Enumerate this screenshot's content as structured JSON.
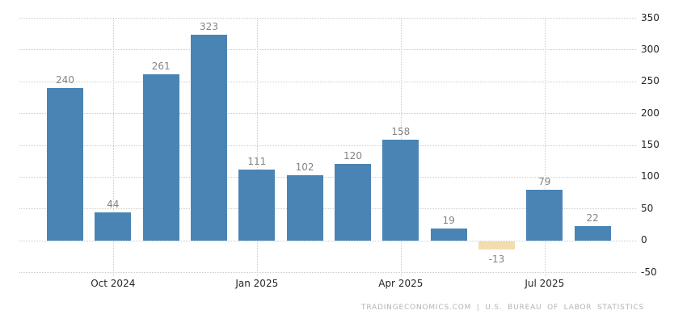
{
  "chart_data": {
    "type": "bar",
    "title": "",
    "xlabel": "",
    "ylabel": "",
    "values": [
      240,
      44,
      261,
      323,
      111,
      102,
      120,
      158,
      19,
      -13,
      79,
      22
    ],
    "value_labels": [
      "240",
      "44",
      "261",
      "323",
      "111",
      "102",
      "120",
      "158",
      "19",
      "-13",
      "79",
      "22"
    ],
    "x_ticks": [
      {
        "label": "Oct 2024",
        "bar_index": 1
      },
      {
        "label": "Jan 2025",
        "bar_index": 4
      },
      {
        "label": "Apr 2025",
        "bar_index": 7
      },
      {
        "label": "Jul 2025",
        "bar_index": 10
      }
    ],
    "ylim": [
      -50,
      350
    ],
    "y_step": 50,
    "y_tick_labels": [
      "350",
      "300",
      "250",
      "200",
      "150",
      "100",
      "50",
      "0",
      "-50"
    ],
    "y_axis_side": "right",
    "grid": "dotted",
    "legend": "none",
    "colors": {
      "positive_bar": "#4a84b4",
      "negative_bar": "#f3ddb0",
      "grid_line": "#cccccc",
      "value_label": "#848484",
      "axis_label": "#262626",
      "attribution": "#b3b3b3",
      "background": "#ffffff"
    }
  },
  "footer": {
    "attribution": "TRADINGECONOMICS.COM | U.S. BUREAU OF LABOR STATISTICS"
  }
}
